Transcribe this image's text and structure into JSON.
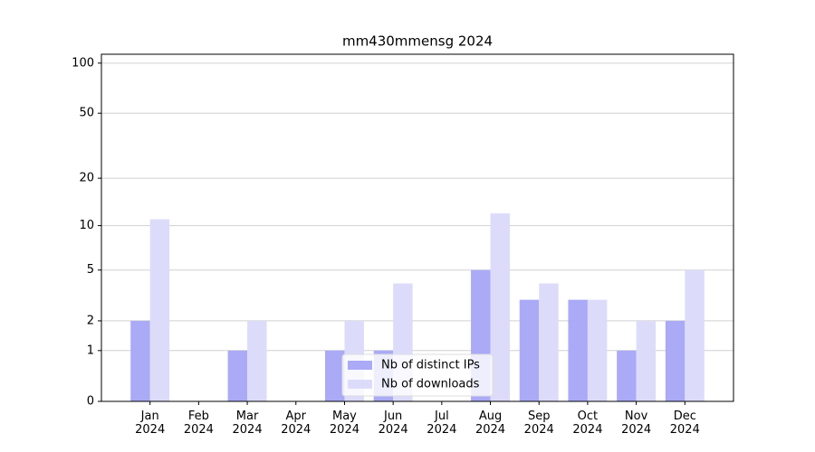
{
  "chart_data": {
    "type": "bar",
    "title": "mm430mmensg 2024",
    "categories": [
      "Jan 2024",
      "Feb 2024",
      "Mar 2024",
      "Apr 2024",
      "May 2024",
      "Jun 2024",
      "Jul 2024",
      "Aug 2024",
      "Sep 2024",
      "Oct 2024",
      "Nov 2024",
      "Dec 2024"
    ],
    "series": [
      {
        "name": "Nb of distinct IPs",
        "color": "#aaaaf6",
        "values": [
          2,
          0,
          1,
          0,
          1,
          1,
          0,
          5,
          3,
          3,
          1,
          2
        ]
      },
      {
        "name": "Nb of downloads",
        "color": "#dcdcfa",
        "values": [
          11,
          0,
          2,
          0,
          2,
          4,
          0,
          12,
          4,
          3,
          2,
          5
        ]
      }
    ],
    "yscale": "log1p",
    "ylim": [
      0,
      113
    ],
    "yticks": [
      0,
      1,
      2,
      5,
      10,
      20,
      50,
      100
    ],
    "grid": true,
    "legend": "lower center"
  }
}
